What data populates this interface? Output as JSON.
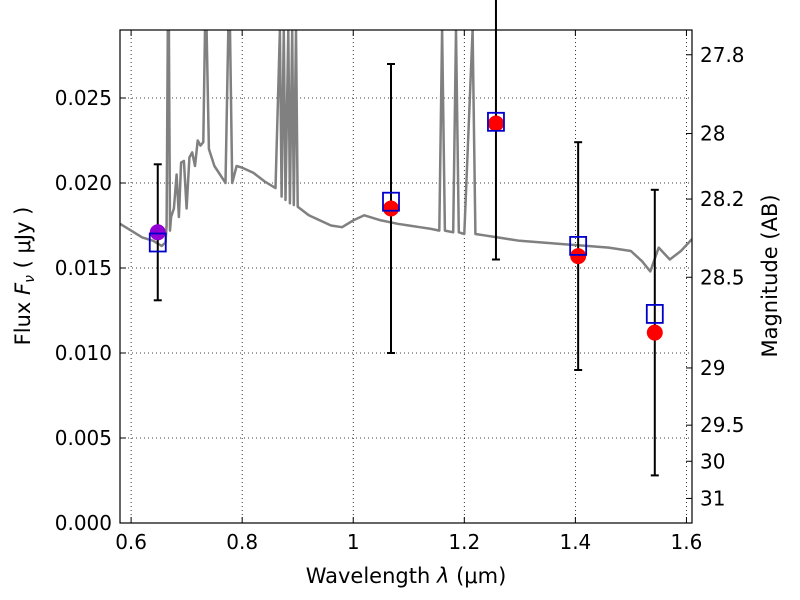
{
  "chart_data": {
    "type": "scatter",
    "xlabel": "Wavelength  λ (μm)",
    "ylabel": "Flux  F_ν  ( μJy )",
    "ylabel_parts": {
      "prefix": "Flux  ",
      "symbol": "F",
      "subscript": "ν",
      "suffix": "  ( μJy )"
    },
    "xlabel_parts": {
      "prefix": "Wavelength  ",
      "symbol": "λ",
      "suffix": " (μm)"
    },
    "y2label": "Magnitude (AB)",
    "xlim": [
      0.58,
      1.61
    ],
    "ylim": [
      0.0,
      0.029
    ],
    "grid": true,
    "x_ticks": [
      {
        "value": 0.6,
        "label": "0.6"
      },
      {
        "value": 0.8,
        "label": "0.8"
      },
      {
        "value": 1.0,
        "label": "1"
      },
      {
        "value": 1.2,
        "label": "1.2"
      },
      {
        "value": 1.4,
        "label": "1.4"
      },
      {
        "value": 1.6,
        "label": "1.6"
      }
    ],
    "y_ticks": [
      {
        "value": 0.0,
        "label": "0.000"
      },
      {
        "value": 0.005,
        "label": "0.005"
      },
      {
        "value": 0.01,
        "label": "0.010"
      },
      {
        "value": 0.015,
        "label": "0.015"
      },
      {
        "value": 0.02,
        "label": "0.020"
      },
      {
        "value": 0.025,
        "label": "0.025"
      }
    ],
    "y2_ticks": [
      {
        "value": 27.8,
        "label": "27.8"
      },
      {
        "value": 28.0,
        "label": "28"
      },
      {
        "value": 28.2,
        "label": "28.2"
      },
      {
        "value": 28.5,
        "label": "28.5"
      },
      {
        "value": 29.0,
        "label": "29"
      },
      {
        "value": 29.5,
        "label": "29.5"
      },
      {
        "value": 30.0,
        "label": "30"
      },
      {
        "value": 31.0,
        "label": "31"
      }
    ],
    "model_spectrum": {
      "color": "#808080",
      "points": [
        [
          0.58,
          0.0176
        ],
        [
          0.6,
          0.0172
        ],
        [
          0.62,
          0.0168
        ],
        [
          0.64,
          0.0166
        ],
        [
          0.655,
          0.0163
        ],
        [
          0.662,
          0.0165
        ],
        [
          0.664,
          0.0175
        ],
        [
          0.666,
          0.029
        ],
        [
          0.668,
          0.029
        ],
        [
          0.67,
          0.0172
        ],
        [
          0.672,
          0.018
        ],
        [
          0.677,
          0.0185
        ],
        [
          0.682,
          0.0205
        ],
        [
          0.686,
          0.018
        ],
        [
          0.69,
          0.0212
        ],
        [
          0.695,
          0.0213
        ],
        [
          0.7,
          0.0185
        ],
        [
          0.705,
          0.0215
        ],
        [
          0.71,
          0.0218
        ],
        [
          0.715,
          0.021
        ],
        [
          0.72,
          0.0225
        ],
        [
          0.725,
          0.0222
        ],
        [
          0.73,
          0.0224
        ],
        [
          0.733,
          0.029
        ],
        [
          0.736,
          0.029
        ],
        [
          0.74,
          0.022
        ],
        [
          0.75,
          0.021
        ],
        [
          0.76,
          0.0205
        ],
        [
          0.77,
          0.02
        ],
        [
          0.775,
          0.029
        ],
        [
          0.778,
          0.029
        ],
        [
          0.782,
          0.02
        ],
        [
          0.79,
          0.021
        ],
        [
          0.8,
          0.0209
        ],
        [
          0.82,
          0.0206
        ],
        [
          0.84,
          0.0201
        ],
        [
          0.86,
          0.0197
        ],
        [
          0.868,
          0.029
        ],
        [
          0.871,
          0.0192
        ],
        [
          0.875,
          0.029
        ],
        [
          0.878,
          0.019
        ],
        [
          0.883,
          0.029
        ],
        [
          0.886,
          0.0188
        ],
        [
          0.89,
          0.029
        ],
        [
          0.893,
          0.0187
        ],
        [
          0.897,
          0.029
        ],
        [
          0.9,
          0.0186
        ],
        [
          0.92,
          0.0181
        ],
        [
          0.94,
          0.0178
        ],
        [
          0.96,
          0.0175
        ],
        [
          0.98,
          0.0174
        ],
        [
          1.0,
          0.0178
        ],
        [
          1.02,
          0.0181
        ],
        [
          1.05,
          0.0178
        ],
        [
          1.08,
          0.0176
        ],
        [
          1.1,
          0.0175
        ],
        [
          1.12,
          0.0174
        ],
        [
          1.14,
          0.0173
        ],
        [
          1.155,
          0.0172
        ],
        [
          1.16,
          0.029
        ],
        [
          1.165,
          0.0172
        ],
        [
          1.18,
          0.0171
        ],
        [
          1.185,
          0.029
        ],
        [
          1.19,
          0.0171
        ],
        [
          1.2,
          0.017
        ],
        [
          1.215,
          0.029
        ],
        [
          1.22,
          0.017
        ],
        [
          1.24,
          0.0169
        ],
        [
          1.26,
          0.0168
        ],
        [
          1.28,
          0.0167
        ],
        [
          1.3,
          0.0166
        ],
        [
          1.34,
          0.0165
        ],
        [
          1.38,
          0.0164
        ],
        [
          1.42,
          0.0163
        ],
        [
          1.46,
          0.0162
        ],
        [
          1.5,
          0.016
        ],
        [
          1.52,
          0.0154
        ],
        [
          1.535,
          0.0148
        ],
        [
          1.55,
          0.0162
        ],
        [
          1.57,
          0.0155
        ],
        [
          1.59,
          0.016
        ],
        [
          1.61,
          0.0167
        ]
      ]
    },
    "observed": [
      {
        "x": 0.648,
        "y": 0.0171,
        "err": 0.004,
        "color": "#9400d3"
      },
      {
        "x": 1.068,
        "y": 0.0185,
        "err": 0.0085,
        "color": "#ff0000"
      },
      {
        "x": 1.257,
        "y": 0.0235,
        "err": 0.008,
        "color": "#ff0000"
      },
      {
        "x": 1.405,
        "y": 0.0157,
        "err": 0.0067,
        "color": "#ff0000"
      },
      {
        "x": 1.543,
        "y": 0.0112,
        "err": 0.0084,
        "color": "#ff0000"
      }
    ],
    "model_photometry": {
      "color": "#0000cc",
      "points": [
        {
          "x": 0.648,
          "y": 0.0165
        },
        {
          "x": 1.068,
          "y": 0.0189
        },
        {
          "x": 1.257,
          "y": 0.0236
        },
        {
          "x": 1.405,
          "y": 0.0163
        },
        {
          "x": 1.543,
          "y": 0.0123
        }
      ]
    }
  }
}
